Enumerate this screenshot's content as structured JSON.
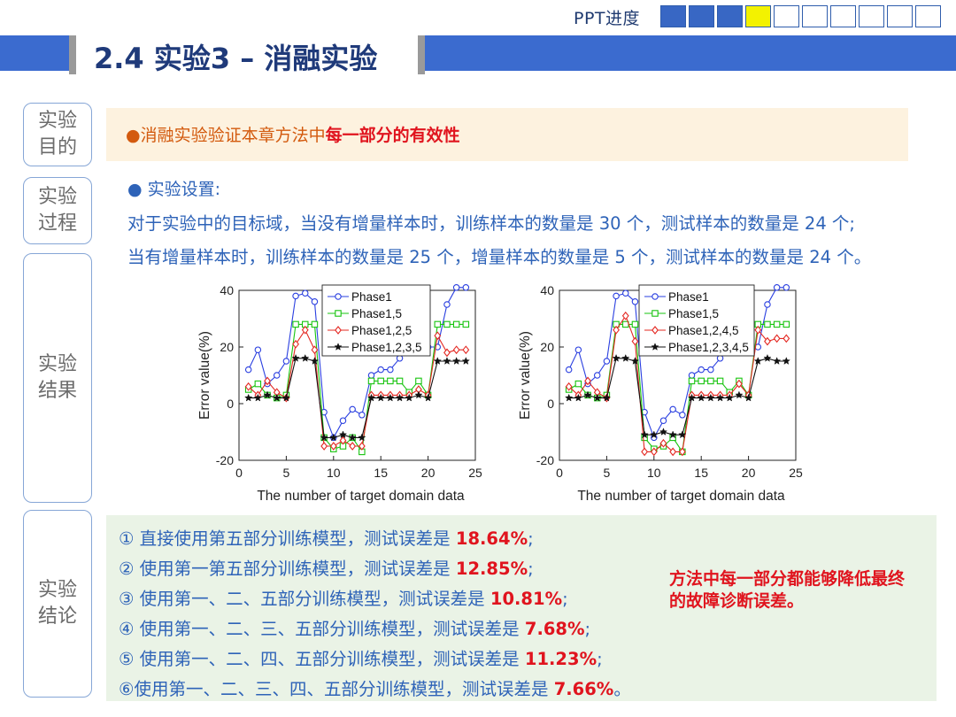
{
  "header": {
    "progress_label": "PPT进度",
    "progress_boxes": [
      "done",
      "done",
      "done",
      "current",
      "empty",
      "empty",
      "empty",
      "empty",
      "empty",
      "empty"
    ],
    "title": "2.4 实验3 – 消融实验"
  },
  "sections": {
    "purpose": "实验\n目的",
    "process": "实验\n过程",
    "results": "实验\n结果",
    "conclusion": "实验\n结论"
  },
  "purpose": {
    "bullet": "●",
    "text": "消融实验验证本章方法中",
    "highlight": "每一部分的有效性"
  },
  "process": {
    "bullet": "● 实验设置:",
    "line1": "对于实验中的目标域，当没有增量样本时，训练样本的数量是 30 个，测试样本的数量是 24 个;",
    "line2": "当有增量样本时，训练样本的数量是 25 个，增量样本的数量是 5 个，测试样本的数量是 24 个。"
  },
  "chart_data": [
    {
      "type": "line",
      "xlabel": "The number of target domain data",
      "ylabel": "Error value(%)",
      "xlim": [
        0,
        25
      ],
      "ylim": [
        -20,
        40
      ],
      "xticks": [
        0,
        5,
        10,
        15,
        20,
        25
      ],
      "yticks": [
        -20,
        0,
        20,
        40
      ],
      "legend_position": "top-center",
      "x": [
        1,
        2,
        3,
        4,
        5,
        6,
        7,
        8,
        9,
        10,
        11,
        12,
        13,
        14,
        15,
        16,
        17,
        18,
        19,
        20,
        21,
        22,
        23,
        24
      ],
      "series": [
        {
          "name": "Phase1",
          "color": "#2a3fe0",
          "marker": "circle",
          "values": [
            12,
            19,
            7,
            10,
            15,
            38,
            39,
            36,
            -3,
            -12,
            -6,
            -2,
            -4,
            10,
            12,
            12,
            16,
            20,
            20,
            20,
            20,
            35,
            41,
            41
          ]
        },
        {
          "name": "Phase1,5",
          "color": "#17c40f",
          "marker": "square",
          "values": [
            5,
            7,
            3,
            2,
            3,
            28,
            28,
            28,
            -12,
            -16,
            -15,
            -12,
            -17,
            8,
            8,
            8,
            8,
            4,
            8,
            3,
            28,
            28,
            28,
            28
          ]
        },
        {
          "name": "Phase1,2,5",
          "color": "#e42822",
          "marker": "diamond",
          "values": [
            6,
            3,
            8,
            4,
            2,
            21,
            26,
            19,
            -15,
            -15,
            -13,
            -15,
            -15,
            3,
            3,
            3,
            3,
            3,
            5,
            3,
            24,
            18,
            19,
            19
          ]
        },
        {
          "name": "Phase1,2,3,5",
          "color": "#111111",
          "marker": "star",
          "values": [
            2,
            2,
            3,
            2,
            2,
            16,
            16,
            15,
            -12,
            -12,
            -11,
            -12,
            -12,
            2,
            2,
            2,
            2,
            2,
            3,
            2,
            15,
            15,
            15,
            15
          ]
        }
      ]
    },
    {
      "type": "line",
      "xlabel": "The number of target domain data",
      "ylabel": "Error value(%)",
      "xlim": [
        0,
        25
      ],
      "ylim": [
        -20,
        40
      ],
      "xticks": [
        0,
        5,
        10,
        15,
        20,
        25
      ],
      "yticks": [
        -20,
        0,
        20,
        40
      ],
      "legend_position": "top-right",
      "x": [
        1,
        2,
        3,
        4,
        5,
        6,
        7,
        8,
        9,
        10,
        11,
        12,
        13,
        14,
        15,
        16,
        17,
        18,
        19,
        20,
        21,
        22,
        23,
        24
      ],
      "series": [
        {
          "name": "Phase1",
          "color": "#2a3fe0",
          "marker": "circle",
          "values": [
            12,
            19,
            7,
            10,
            15,
            38,
            39,
            36,
            -3,
            -12,
            -6,
            -2,
            -4,
            10,
            12,
            12,
            16,
            20,
            20,
            20,
            20,
            35,
            41,
            41
          ]
        },
        {
          "name": "Phase1,5",
          "color": "#17c40f",
          "marker": "square",
          "values": [
            5,
            7,
            3,
            2,
            3,
            28,
            28,
            28,
            -12,
            -16,
            -15,
            -12,
            -17,
            8,
            8,
            8,
            8,
            4,
            8,
            3,
            28,
            28,
            28,
            28
          ]
        },
        {
          "name": "Phase1,2,4,5",
          "color": "#e42822",
          "marker": "diamond",
          "values": [
            6,
            3,
            8,
            4,
            2,
            26,
            31,
            22,
            -17,
            -17,
            -14,
            -17,
            -17,
            3,
            3,
            3,
            3,
            3,
            7,
            3,
            26,
            22,
            23,
            23
          ]
        },
        {
          "name": "Phase1,2,3,4,5",
          "color": "#111111",
          "marker": "star",
          "values": [
            2,
            2,
            3,
            2,
            2,
            16,
            16,
            15,
            -11,
            -11,
            -10,
            -11,
            -11,
            2,
            2,
            2,
            2,
            2,
            3,
            2,
            15,
            16,
            15,
            15
          ]
        }
      ]
    }
  ],
  "conclusion": {
    "lines": [
      {
        "text": "① 直接使用第五部分训练模型，测试误差是 ",
        "value": "18.64%",
        "end": ";"
      },
      {
        "text": "② 使用第一第五部分训练模型，测试误差是 ",
        "value": "12.85%",
        "end": ";"
      },
      {
        "text": "③ 使用第一、二、五部分训练模型，测试误差是 ",
        "value": "10.81%",
        "end": ";"
      },
      {
        "text": "④ 使用第一、二、三、五部分训练模型，测试误差是 ",
        "value": "7.68%",
        "end": ";"
      },
      {
        "text": "⑤ 使用第一、二、四、五部分训练模型，测试误差是 ",
        "value": "11.23%",
        "end": ";"
      },
      {
        "text": "⑥使用第一、二、三、四、五部分训练模型，测试误差是 ",
        "value": "7.66%",
        "end": "。"
      }
    ],
    "note": "方法中每一部分都能够降低最终的故障诊断误差。"
  }
}
